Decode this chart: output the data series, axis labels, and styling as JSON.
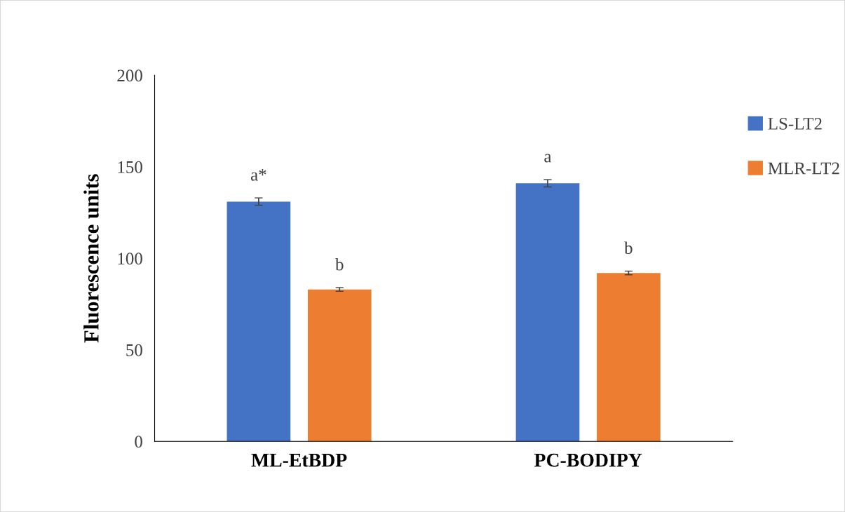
{
  "chart_data": {
    "type": "bar",
    "ylabel": "Fluorescence units",
    "categories": [
      "ML-EtBDP",
      "PC-BODIPY"
    ],
    "series": [
      {
        "name": "LS-LT2",
        "color": "#4472c4",
        "values": [
          131,
          141
        ],
        "errors": [
          2,
          2
        ],
        "value_labels": [
          "a*",
          "a"
        ]
      },
      {
        "name": "MLR-LT2",
        "color": "#ed7d31",
        "values": [
          83,
          92
        ],
        "errors": [
          1,
          1
        ],
        "value_labels": [
          "b",
          "b"
        ]
      }
    ],
    "ylim": [
      0,
      200
    ],
    "yticks": [
      0,
      50,
      100,
      150,
      200
    ],
    "grid": false,
    "legend": "top right"
  }
}
